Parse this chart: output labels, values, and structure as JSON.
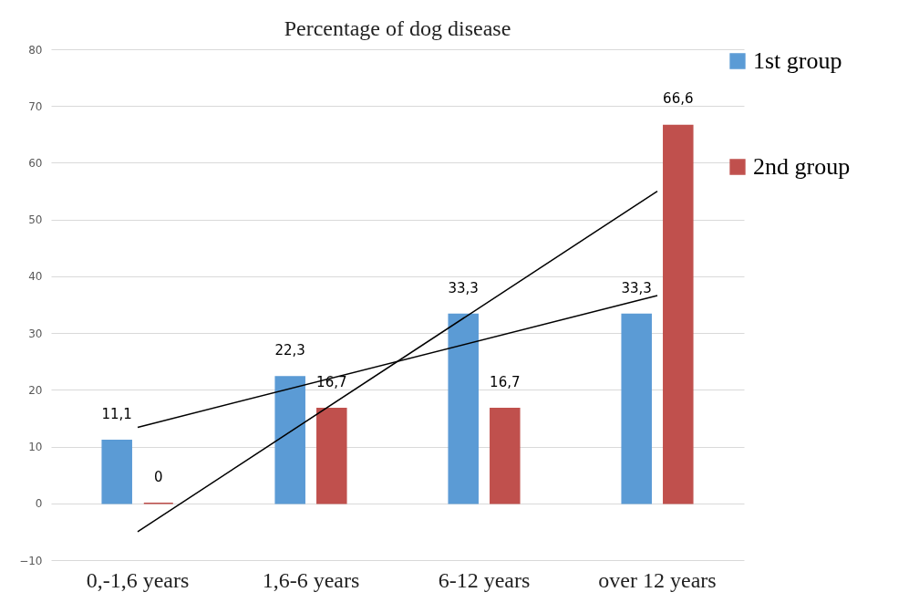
{
  "chart_data": {
    "type": "bar",
    "title": "Percentage of dog disease",
    "categories": [
      "0,-1,6 years",
      "1,6-6 years",
      "6-12 years",
      "over 12 years"
    ],
    "series": [
      {
        "name": "1st group",
        "color": "#5b9bd5",
        "values": [
          11.1,
          22.3,
          33.3,
          33.3
        ],
        "value_labels": [
          "11,1",
          "22,3",
          "33,3",
          "33,3"
        ]
      },
      {
        "name": "2nd group",
        "color": "#c0504d",
        "values": [
          0,
          16.7,
          16.7,
          66.6
        ],
        "value_labels": [
          "0",
          "16,7",
          "16,7",
          "66,6"
        ]
      },
      {
        "type": "line",
        "color": "#000000",
        "x": [
          "0,-1,6 years",
          "over 12 years"
        ],
        "values": [
          13.4,
          36.6
        ]
      },
      {
        "type": "line",
        "color": "#000000",
        "x": [
          "0,-1,6 years",
          "over 12 years"
        ],
        "values": [
          -5,
          55
        ]
      }
    ],
    "ylim": [
      -10,
      80
    ],
    "yticks": [
      -10,
      0,
      10,
      20,
      30,
      40,
      50,
      60,
      70,
      80
    ],
    "grid": "y",
    "legend": "right"
  }
}
